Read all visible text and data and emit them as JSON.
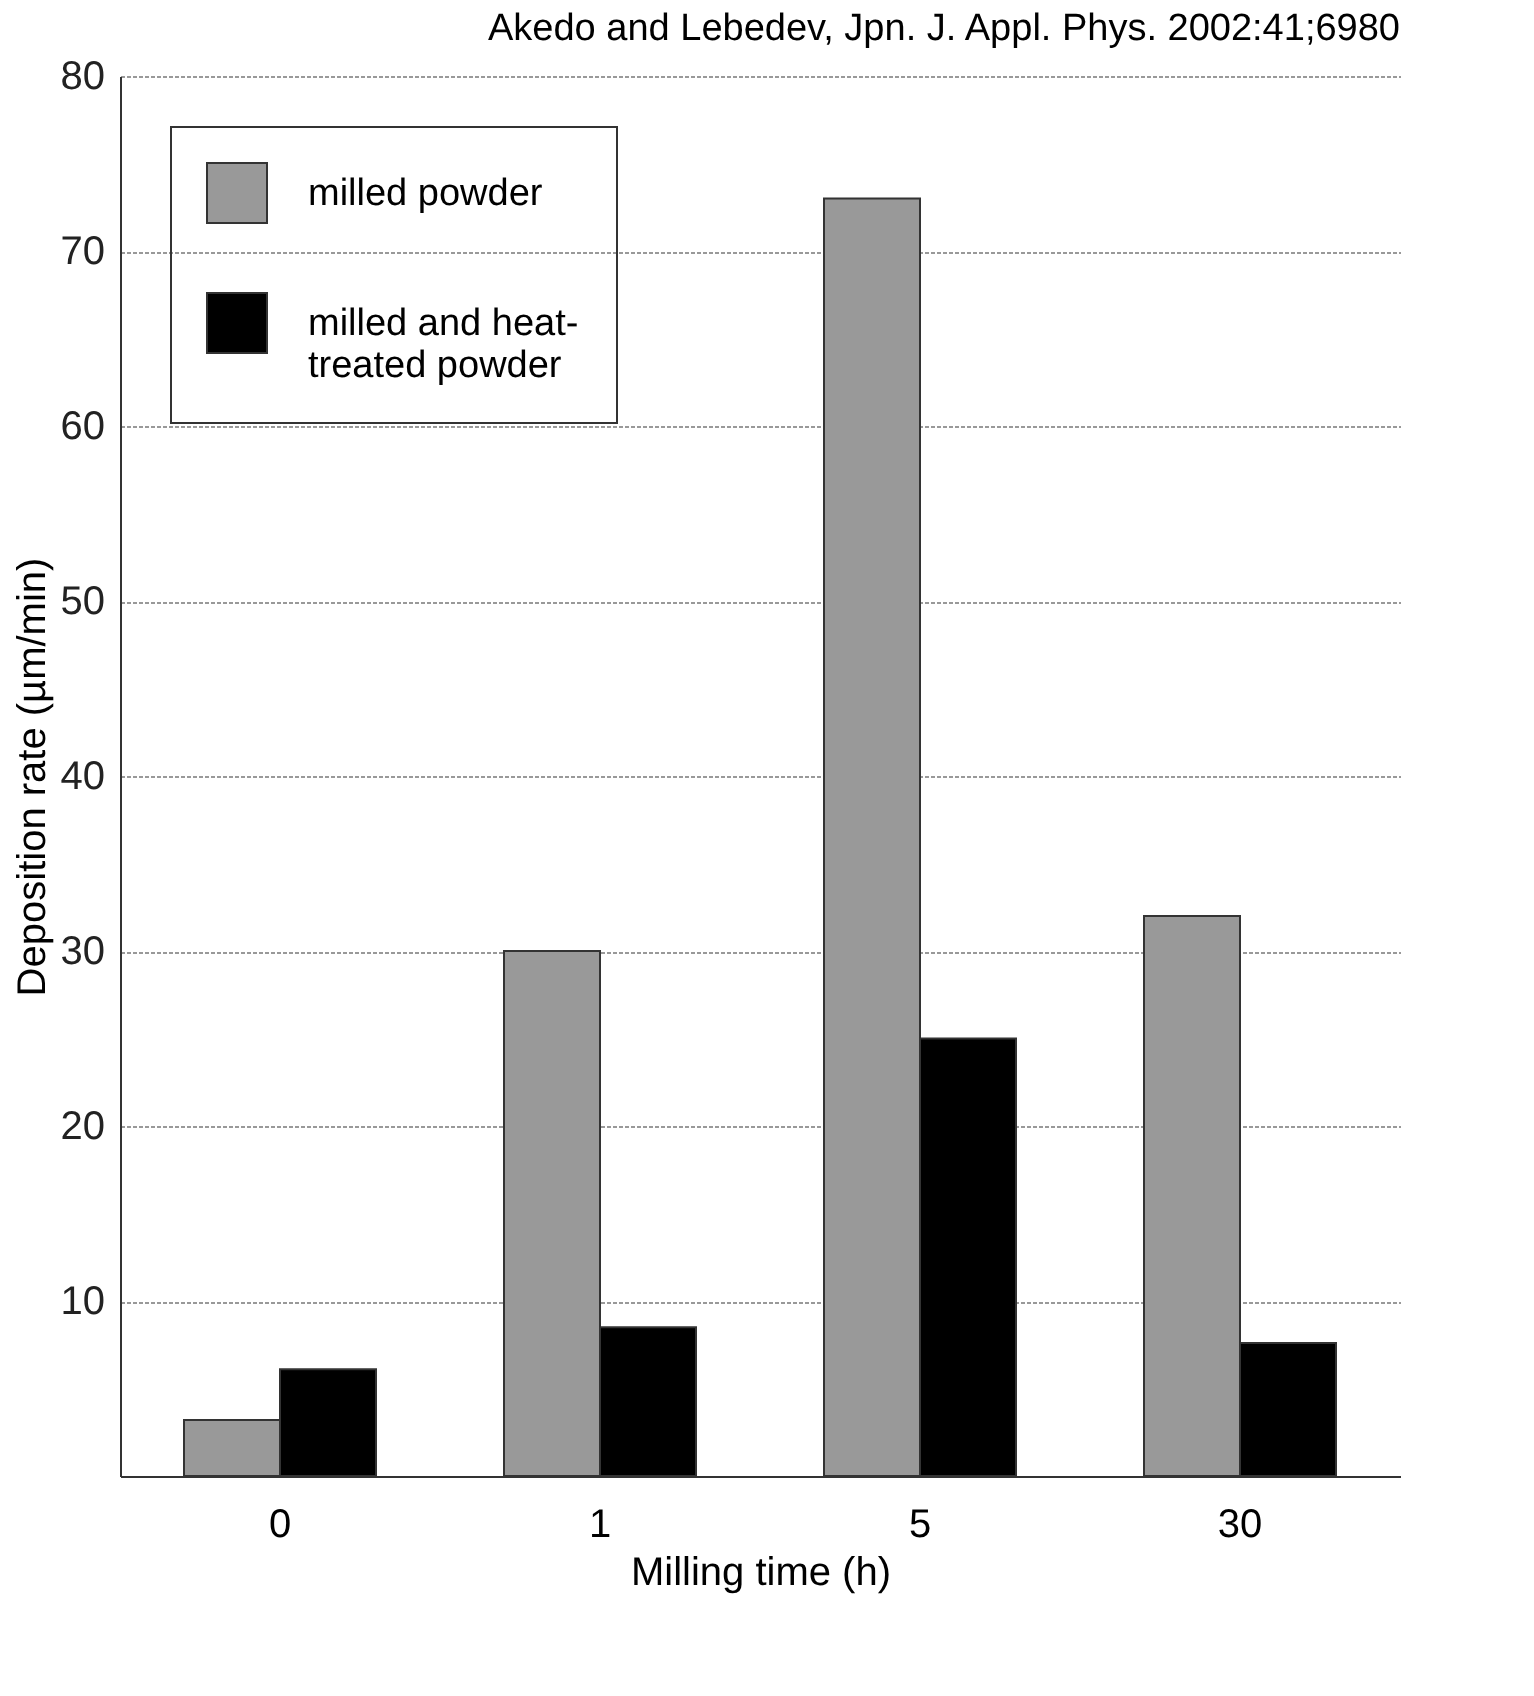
{
  "chart_data": {
    "type": "bar",
    "annotations": [
      "Akedo and Lebedev, Jpn. J. Appl. Phys. 2002:41;6980"
    ],
    "xlabel": "Milling time (h)",
    "ylabel": "Deposition rate (µm/min)",
    "categories": [
      "0",
      "1",
      "5",
      "30"
    ],
    "series": [
      {
        "name": "milled powder",
        "color": "#999999",
        "values": [
          3.2,
          30,
          73,
          32
        ]
      },
      {
        "name": "milled and heat-treated powder",
        "color": "#000000",
        "values": [
          6.1,
          8.5,
          25,
          7.6
        ]
      }
    ],
    "ylim": [
      0,
      80
    ],
    "yticks": [
      10,
      20,
      30,
      40,
      50,
      60,
      70,
      80
    ],
    "grid": "y",
    "legend": "top left"
  }
}
